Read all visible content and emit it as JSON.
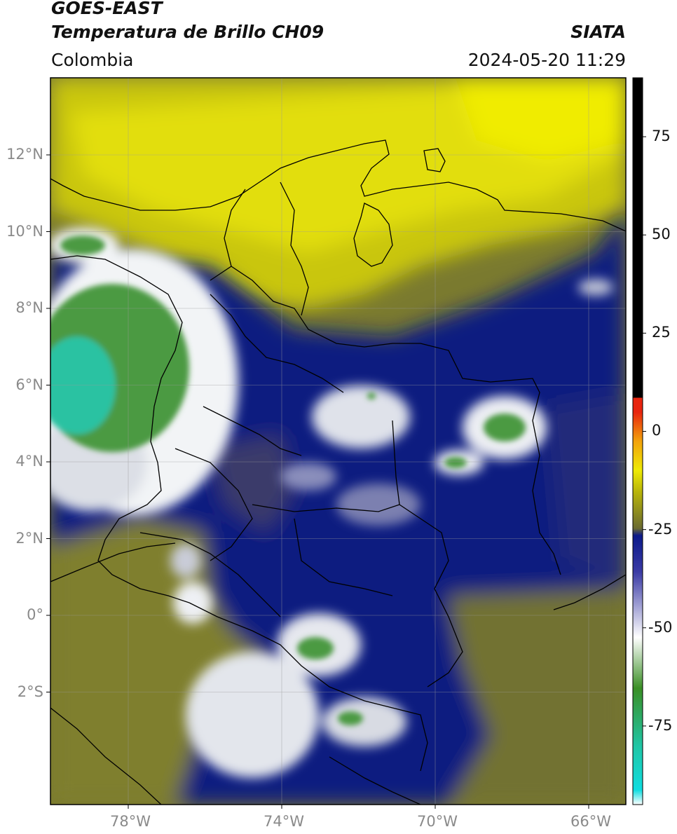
{
  "header": {
    "line1": "GOES-EAST",
    "line2": "Temperatura de Brillo CH09",
    "brand": "SIATA",
    "region": "Colombia",
    "datetime": "2024-05-20 11:29"
  },
  "axes": {
    "lat_labels": [
      "12°N",
      "10°N",
      "8°N",
      "6°N",
      "4°N",
      "2°N",
      "0°",
      "2°S"
    ],
    "lon_labels": [
      "78°W",
      "74°W",
      "70°W",
      "66°W"
    ],
    "lat_values": [
      12,
      10,
      8,
      6,
      4,
      2,
      0,
      -2
    ],
    "lon_values": [
      -78,
      -74,
      -70,
      -66
    ],
    "lon_range": [
      -80,
      -65
    ],
    "lat_range": [
      -5,
      14
    ]
  },
  "colorbar": {
    "tick_labels": [
      "75",
      "50",
      "25",
      "0",
      "-25",
      "-50",
      "-75"
    ],
    "tick_values": [
      75,
      50,
      25,
      0,
      -25,
      -50,
      -75
    ],
    "range": [
      -95,
      90
    ],
    "colors": {
      "black": "#000000",
      "red": "#e8250f",
      "orange": "#f2a20c",
      "yellow": "#eeea05",
      "olive": "#6b6b30",
      "navy": "#0c1a8a",
      "white": "#ffffff",
      "green": "#3a8f25",
      "teal": "#20c6a6",
      "cyan": "#10dde0"
    }
  },
  "map_colors": {
    "yellow_air": "#d9d60a",
    "olive_air": "#8a8a2c",
    "dark_olive": "#5d5d2e",
    "navy": "#101a82",
    "cloud_white": "#f2f4f6",
    "cloud_green": "#4c9a42",
    "cloud_teal": "#2cc2a2"
  }
}
